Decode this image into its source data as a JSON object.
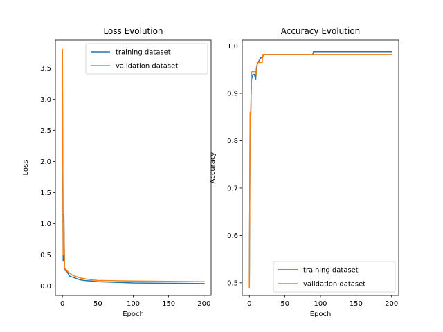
{
  "colors": {
    "training": "#1f77b4",
    "validation": "#ff7f0e",
    "axis": "#000000",
    "legend_border": "#cccccc"
  },
  "chart_data": [
    {
      "type": "line",
      "title": "Loss Evolution",
      "xlabel": "Epoch",
      "ylabel": "Loss",
      "xlim": [
        -10,
        210
      ],
      "ylim": [
        -0.15,
        3.95
      ],
      "xticks": [
        0,
        50,
        100,
        150,
        200
      ],
      "xtick_labels": [
        "0",
        "50",
        "100",
        "150",
        "200"
      ],
      "yticks": [
        0.0,
        0.5,
        1.0,
        1.5,
        2.0,
        2.5,
        3.0,
        3.5
      ],
      "ytick_labels": [
        "0.0",
        "0.5",
        "1.0",
        "1.5",
        "2.0",
        "2.5",
        "3.0",
        "3.5"
      ],
      "grid": false,
      "legend": "top-right",
      "series": [
        {
          "name": "training dataset",
          "x": [
            0,
            1,
            2,
            3,
            4,
            6,
            10,
            15,
            20,
            25,
            30,
            40,
            50,
            75,
            100,
            150,
            200
          ],
          "y": [
            3.3,
            0.4,
            1.15,
            0.28,
            0.25,
            0.24,
            0.16,
            0.14,
            0.12,
            0.1,
            0.09,
            0.08,
            0.07,
            0.06,
            0.05,
            0.045,
            0.04
          ]
        },
        {
          "name": "validation dataset",
          "x": [
            0,
            1,
            2,
            3,
            4,
            6,
            10,
            15,
            20,
            25,
            30,
            40,
            50,
            75,
            100,
            150,
            200
          ],
          "y": [
            3.8,
            0.5,
            1.02,
            0.27,
            0.28,
            0.25,
            0.21,
            0.17,
            0.15,
            0.13,
            0.12,
            0.1,
            0.09,
            0.085,
            0.08,
            0.075,
            0.07
          ]
        }
      ]
    },
    {
      "type": "line",
      "title": "Accuracy Evolution",
      "xlabel": "Epoch",
      "ylabel": "Accuracy",
      "xlim": [
        -10,
        210
      ],
      "ylim": [
        0.4735,
        1.0125
      ],
      "xticks": [
        0,
        50,
        100,
        150,
        200
      ],
      "xtick_labels": [
        "0",
        "50",
        "100",
        "150",
        "200"
      ],
      "yticks": [
        0.5,
        0.6,
        0.7,
        0.8,
        0.9,
        1.0
      ],
      "ytick_labels": [
        "0.5",
        "0.6",
        "0.7",
        "0.8",
        "0.9",
        "1.0"
      ],
      "grid": false,
      "legend": "bottom-right",
      "series": [
        {
          "name": "training dataset",
          "x": [
            0,
            1,
            2,
            3,
            5,
            7,
            9,
            10,
            12,
            14,
            16,
            18,
            20,
            50,
            89,
            90,
            91,
            150,
            200
          ],
          "y": [
            0.49,
            0.84,
            0.855,
            0.93,
            0.94,
            0.94,
            0.93,
            0.955,
            0.965,
            0.97,
            0.975,
            0.975,
            0.982,
            0.982,
            0.982,
            0.988,
            0.988,
            0.988,
            0.988
          ]
        },
        {
          "name": "validation dataset",
          "x": [
            0,
            1,
            2,
            3,
            4,
            8,
            10,
            11,
            14,
            15,
            18,
            19,
            20,
            50,
            100,
            150,
            200
          ],
          "y": [
            0.49,
            0.86,
            0.86,
            0.945,
            0.946,
            0.946,
            0.94,
            0.965,
            0.965,
            0.965,
            0.965,
            0.982,
            0.982,
            0.982,
            0.982,
            0.982,
            0.982
          ]
        }
      ]
    }
  ]
}
